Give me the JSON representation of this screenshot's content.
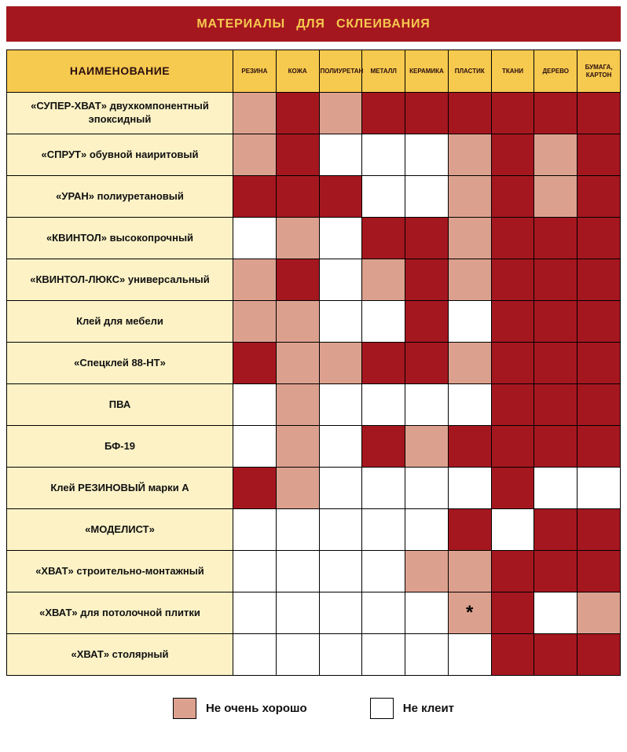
{
  "title": "МАТЕРИАЛЫ ДЛЯ СКЛЕИВАНИЯ",
  "header": {
    "name_column": "НАИМЕНОВАНИЕ"
  },
  "legend": {
    "fair_label": "Не очень хорошо",
    "none_label": "Не клеит"
  },
  "colors": {
    "good": "#A5171F",
    "fair": "#DCA18E",
    "none": "#FFFFFF",
    "header_bg": "#F6C94F",
    "header_text": "#2A0F10",
    "label_bg": "#FCF2C6",
    "title_bg": "#A5171F",
    "title_text": "#F6C94F"
  },
  "chart_data": {
    "type": "heatmap",
    "title": "МАТЕРИАЛЫ ДЛЯ СКЛЕИВАНИЯ",
    "value_states": {
      "good": "глубокий красный (клеит)",
      "fair": "Не очень хорошо",
      "none": "Не клеит"
    },
    "columns": [
      "РЕЗИНА",
      "КОЖА",
      "ПОЛИУРЕТАН",
      "МЕТАЛЛ",
      "КЕРАМИКА",
      "ПЛАСТИК",
      "ТКАНИ",
      "ДЕРЕВО",
      "БУМАГА, КАРТОН"
    ],
    "rows": [
      {
        "name": "«СУПЕР-ХВАТ» двухкомпонентный эпоксидный",
        "cells": [
          "fair",
          "good",
          "fair",
          "good",
          "good",
          "good",
          "good",
          "good",
          "good"
        ]
      },
      {
        "name": "«СПРУТ» обувной наиритовый",
        "cells": [
          "fair",
          "good",
          "none",
          "none",
          "none",
          "fair",
          "good",
          "fair",
          "good"
        ]
      },
      {
        "name": "«УРАН» полиуретановый",
        "cells": [
          "good",
          "good",
          "good",
          "none",
          "none",
          "fair",
          "good",
          "fair",
          "good"
        ]
      },
      {
        "name": "«КВИНТОЛ» высокопрочный",
        "cells": [
          "none",
          "fair",
          "none",
          "good",
          "good",
          "fair",
          "good",
          "good",
          "good"
        ]
      },
      {
        "name": "«КВИНТОЛ-ЛЮКС» универсальный",
        "cells": [
          "fair",
          "good",
          "none",
          "fair",
          "good",
          "fair",
          "good",
          "good",
          "good"
        ]
      },
      {
        "name": "Клей для мебели",
        "cells": [
          "fair",
          "fair",
          "none",
          "none",
          "good",
          "none",
          "good",
          "good",
          "good"
        ]
      },
      {
        "name": "«Спецклей 88-НТ»",
        "cells": [
          "good",
          "fair",
          "fair",
          "good",
          "good",
          "fair",
          "good",
          "good",
          "good"
        ]
      },
      {
        "name": "ПВА",
        "cells": [
          "none",
          "fair",
          "none",
          "none",
          "none",
          "none",
          "good",
          "good",
          "good"
        ]
      },
      {
        "name": "БФ-19",
        "cells": [
          "none",
          "fair",
          "none",
          "good",
          "fair",
          "good",
          "good",
          "good",
          "good"
        ]
      },
      {
        "name": "Клей РЕЗИНОВЫЙ марки А",
        "cells": [
          "good",
          "fair",
          "none",
          "none",
          "none",
          "none",
          "good",
          "none",
          "none"
        ]
      },
      {
        "name": "«МОДЕЛИСТ»",
        "cells": [
          "none",
          "none",
          "none",
          "none",
          "none",
          "good",
          "none",
          "good",
          "good"
        ]
      },
      {
        "name": "«ХВАТ» строительно-монтажный",
        "cells": [
          "none",
          "none",
          "none",
          "none",
          "fair",
          "fair",
          "good",
          "good",
          "good"
        ]
      },
      {
        "name": "«ХВАТ» для потолочной плитки",
        "cells": [
          "none",
          "none",
          "none",
          "none",
          "none",
          "fair",
          "good",
          "none",
          "fair"
        ]
      },
      {
        "name": "«ХВАТ» столярный",
        "cells": [
          "none",
          "none",
          "none",
          "none",
          "none",
          "none",
          "good",
          "good",
          "good"
        ]
      }
    ],
    "annotation": {
      "row": 12,
      "col": 5,
      "mark": "*"
    },
    "legend_entries": [
      {
        "state": "fair",
        "label": "Не очень хорошо"
      },
      {
        "state": "none",
        "label": "Не клеит"
      }
    ]
  }
}
